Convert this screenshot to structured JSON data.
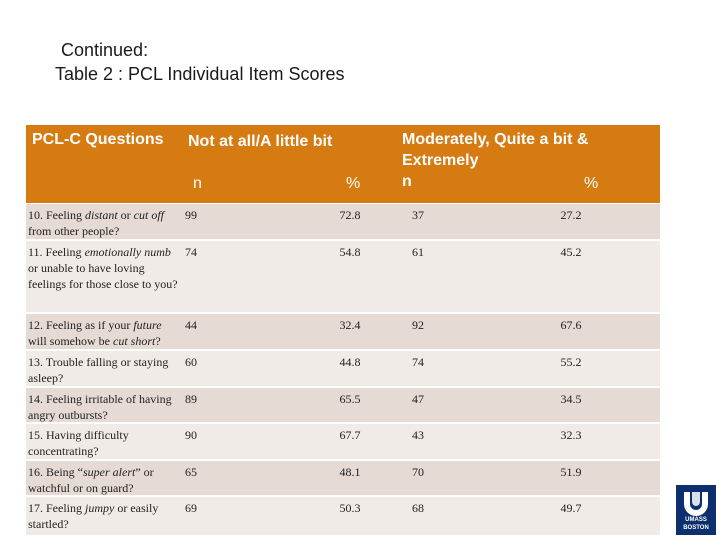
{
  "title": {
    "line1": "Continued:",
    "line2": "Table 2 : PCL Individual Item Scores"
  },
  "header": {
    "col1": "PCL-C Questions",
    "col2": "Not at all/A little bit",
    "col2_n": "n",
    "col2_pct": "%",
    "col3_line1": "Moderately, Quite a bit &",
    "col3_line2": "Extremely",
    "col3_n": "n",
    "col3_pct": "%"
  },
  "rows": [
    {
      "q_pre": "10. Feeling ",
      "q_em": "distant",
      "q_mid": " or ",
      "q_em2": "cut off",
      "q_post": " from other people?",
      "n1": "99",
      "p1": "72.8",
      "n2": "37",
      "p2": "27.2"
    },
    {
      "q_pre": "11. Feeling ",
      "q_em": "emotionally numb",
      "q_mid": "",
      "q_em2": "",
      "q_post": " or unable to have loving feelings for those close to you?",
      "n1": "74",
      "p1": "54.8",
      "n2": "61",
      "p2": "45.2"
    },
    {
      "q_pre": "12. Feeling as if your ",
      "q_em": "future",
      "q_mid": " will somehow be ",
      "q_em2": "cut short",
      "q_post": "?",
      "n1": "44",
      "p1": "32.4",
      "n2": "92",
      "p2": "67.6"
    },
    {
      "q_pre": "13. Trouble falling or staying asleep?",
      "q_em": "",
      "q_mid": "",
      "q_em2": "",
      "q_post": "",
      "n1": "60",
      "p1": "44.8",
      "n2": "74",
      "p2": "55.2"
    },
    {
      "q_pre": "14. Feeling irritable of having angry outbursts?",
      "q_em": "",
      "q_mid": "",
      "q_em2": "",
      "q_post": "",
      "n1": "89",
      "p1": "65.5",
      "n2": "47",
      "p2": "34.5"
    },
    {
      "q_pre": "15. Having difficulty concentrating?",
      "q_em": "",
      "q_mid": "",
      "q_em2": "",
      "q_post": "",
      "n1": "90",
      "p1": "67.7",
      "n2": "43",
      "p2": "32.3"
    },
    {
      "q_pre": "16. Being “",
      "q_em": "super alert",
      "q_mid": "” or watchful or on guard?",
      "q_em2": "",
      "q_post": "",
      "n1": "65",
      "p1": "48.1",
      "n2": "70",
      "p2": "51.9"
    },
    {
      "q_pre": "17. Feeling ",
      "q_em": "jumpy",
      "q_mid": " or easily startled?",
      "q_em2": "",
      "q_post": "",
      "n1": "69",
      "p1": "50.3",
      "n2": "68",
      "p2": "49.7"
    }
  ],
  "logo": {
    "line1": "UMASS",
    "line2": "BOSTON",
    "color": "#0d2f6e"
  },
  "colors": {
    "header_bg": "#d67a12",
    "row_dark": "#e6dad4",
    "row_light": "#f1ebe8"
  }
}
